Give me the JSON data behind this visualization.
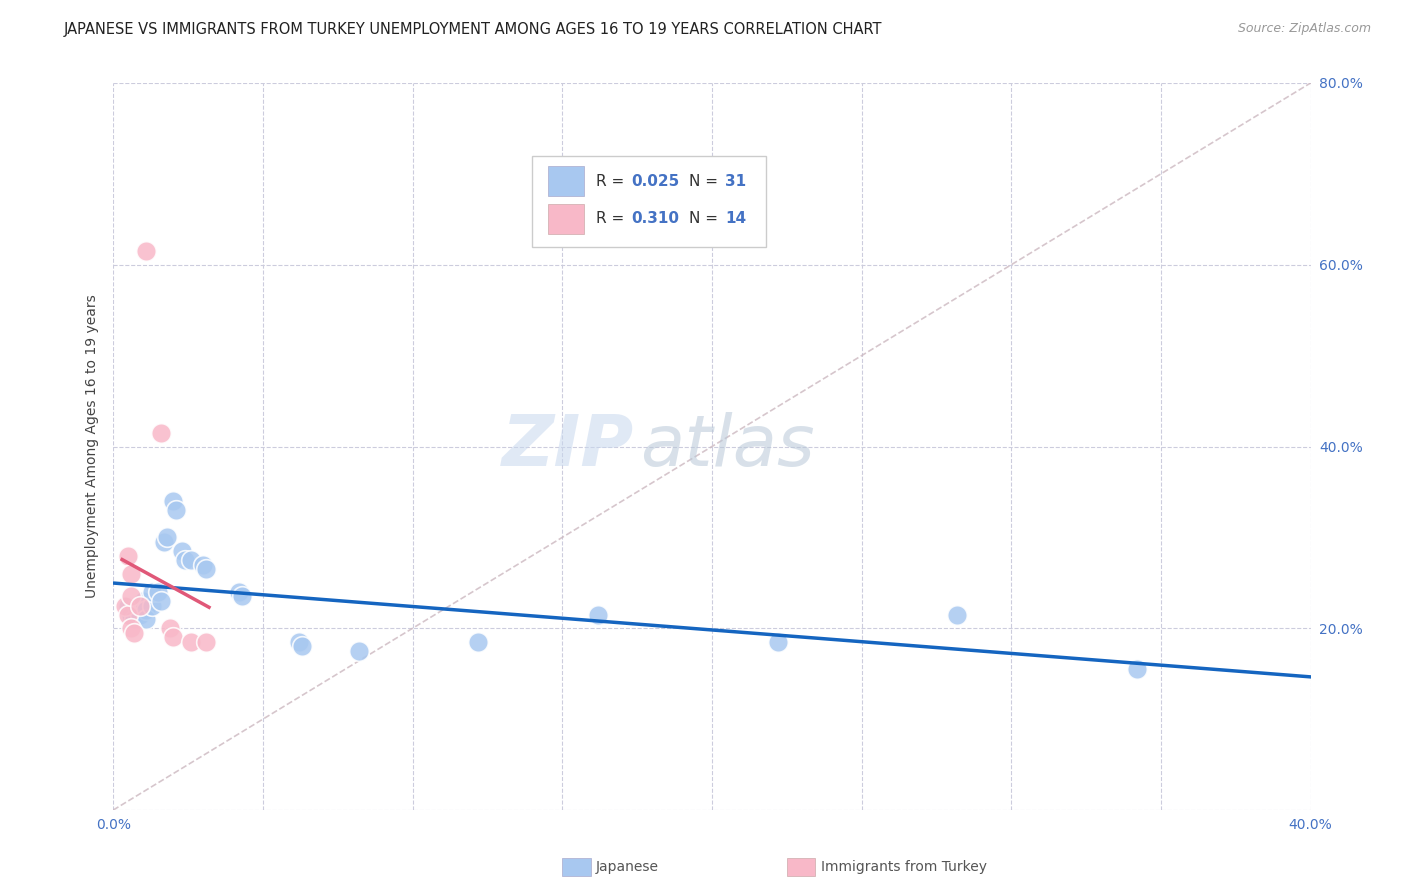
{
  "title": "JAPANESE VS IMMIGRANTS FROM TURKEY UNEMPLOYMENT AMONG AGES 16 TO 19 YEARS CORRELATION CHART",
  "source": "Source: ZipAtlas.com",
  "ylabel": "Unemployment Among Ages 16 to 19 years",
  "xlim": [
    0,
    0.4
  ],
  "ylim": [
    0,
    0.8
  ],
  "xticks": [
    0.0,
    0.05,
    0.1,
    0.15,
    0.2,
    0.25,
    0.3,
    0.35,
    0.4
  ],
  "yticks": [
    0.0,
    0.2,
    0.4,
    0.6,
    0.8
  ],
  "watermark_zip": "ZIP",
  "watermark_atlas": "atlas",
  "japanese_color": "#a8c8f0",
  "turkish_color": "#f8b8c8",
  "trend_japanese_color": "#1565c0",
  "trend_turkish_color": "#e05878",
  "diagonal_color": "#ccb8c0",
  "background_color": "#ffffff",
  "grid_color": "#ccccdd",
  "japanese_points": [
    [
      0.005,
      0.225
    ],
    [
      0.006,
      0.215
    ],
    [
      0.007,
      0.21
    ],
    [
      0.008,
      0.225
    ],
    [
      0.009,
      0.215
    ],
    [
      0.01,
      0.23
    ],
    [
      0.011,
      0.22
    ],
    [
      0.011,
      0.21
    ],
    [
      0.013,
      0.225
    ],
    [
      0.013,
      0.24
    ],
    [
      0.015,
      0.24
    ],
    [
      0.016,
      0.23
    ],
    [
      0.017,
      0.295
    ],
    [
      0.018,
      0.3
    ],
    [
      0.02,
      0.34
    ],
    [
      0.021,
      0.33
    ],
    [
      0.023,
      0.285
    ],
    [
      0.024,
      0.275
    ],
    [
      0.026,
      0.275
    ],
    [
      0.03,
      0.27
    ],
    [
      0.031,
      0.265
    ],
    [
      0.042,
      0.24
    ],
    [
      0.043,
      0.235
    ],
    [
      0.062,
      0.185
    ],
    [
      0.063,
      0.18
    ],
    [
      0.082,
      0.175
    ],
    [
      0.122,
      0.185
    ],
    [
      0.162,
      0.215
    ],
    [
      0.222,
      0.185
    ],
    [
      0.282,
      0.215
    ],
    [
      0.342,
      0.155
    ]
  ],
  "turkish_points": [
    [
      0.004,
      0.225
    ],
    [
      0.005,
      0.215
    ],
    [
      0.005,
      0.28
    ],
    [
      0.006,
      0.26
    ],
    [
      0.006,
      0.235
    ],
    [
      0.006,
      0.2
    ],
    [
      0.007,
      0.195
    ],
    [
      0.009,
      0.225
    ],
    [
      0.011,
      0.615
    ],
    [
      0.016,
      0.415
    ],
    [
      0.019,
      0.2
    ],
    [
      0.02,
      0.19
    ],
    [
      0.026,
      0.185
    ],
    [
      0.031,
      0.185
    ]
  ],
  "title_fontsize": 10.5,
  "axis_label_fontsize": 10,
  "tick_fontsize": 10,
  "legend_fontsize": 11,
  "watermark_fontsize_zip": 52,
  "watermark_fontsize_atlas": 52
}
